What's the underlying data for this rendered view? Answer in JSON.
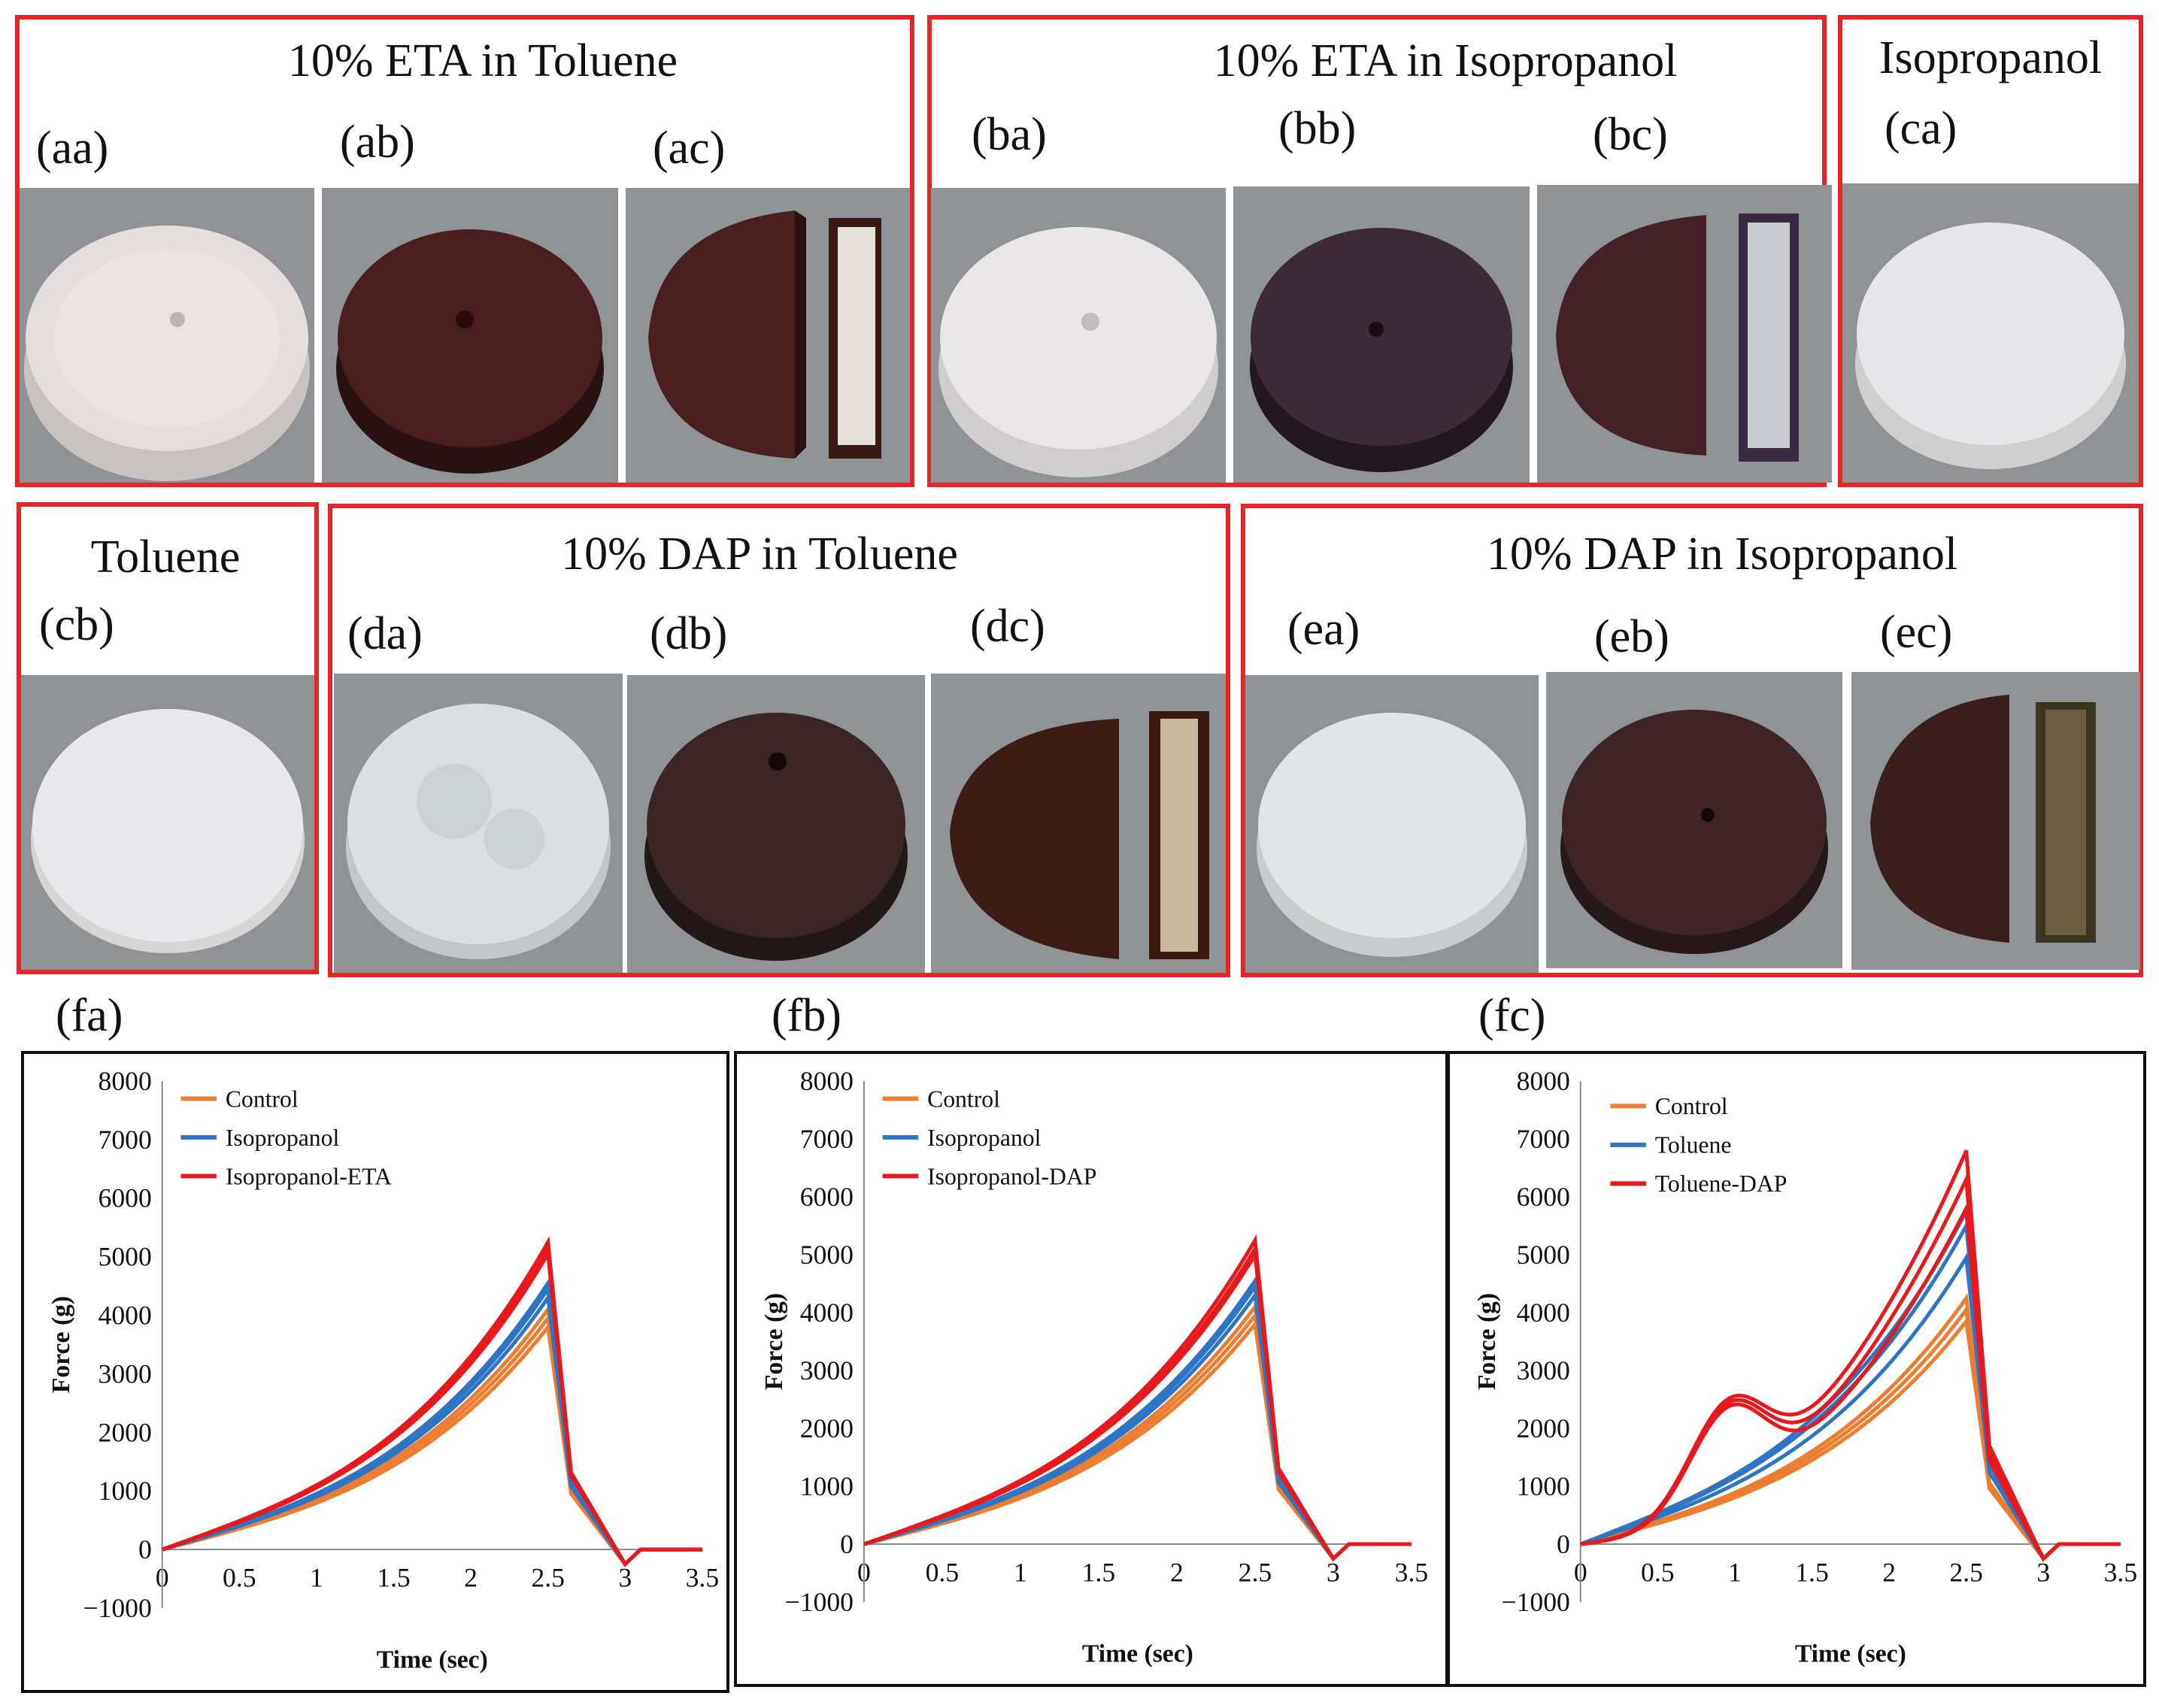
{
  "groups": {
    "eta_toluene": "10% ETA in Toluene",
    "eta_isopropanol": "10% ETA in Isopropanol",
    "isopropanol": "Isopropanol",
    "toluene": "Toluene",
    "dap_toluene": "10% DAP in Toluene",
    "dap_isopropanol": "10% DAP in Isopropanol"
  },
  "labels": {
    "aa": "(aa)",
    "ab": "(ab)",
    "ac": "(ac)",
    "ba": "(ba)",
    "bb": "(bb)",
    "bc": "(bc)",
    "ca": "(ca)",
    "cb": "(cb)",
    "da": "(da)",
    "db": "(db)",
    "dc": "(dc)",
    "ea": "(ea)",
    "eb": "(eb)",
    "ec": "(ec)",
    "fa": "(fa)",
    "fb": "(fb)",
    "fc": "(fc)"
  },
  "colors": {
    "control": "#ed7d31",
    "blue": "#2e75c4",
    "red": "#e8191c",
    "frame": "#e3262a"
  },
  "chart_data": [
    {
      "id": "fa",
      "type": "line",
      "xlabel": "Time (sec)",
      "ylabel": "Force (g)",
      "xlim": [
        0,
        3.5
      ],
      "ylim": [
        -1000,
        8000
      ],
      "xticks": [
        0,
        0.5,
        1,
        1.5,
        2,
        2.5,
        3,
        3.5
      ],
      "yticks": [
        -1000,
        0,
        1000,
        2000,
        3000,
        4000,
        5000,
        6000,
        7000,
        8000
      ],
      "legend": [
        "Control",
        "Isopropanol",
        "Isopropanol-ETA"
      ],
      "series": [
        {
          "name": "Control",
          "color": "#ed7d31",
          "peaks": [
            3800,
            3950,
            4100
          ]
        },
        {
          "name": "Isopropanol",
          "color": "#2e75c4",
          "peaks": [
            4300,
            4450,
            4550
          ]
        },
        {
          "name": "Isopropanol-ETA",
          "color": "#e8191c",
          "peaks": [
            5050,
            5150,
            5250
          ]
        }
      ]
    },
    {
      "id": "fb",
      "type": "line",
      "xlabel": "Time (sec)",
      "ylabel": "Force (g)",
      "xlim": [
        0,
        3.5
      ],
      "ylim": [
        -1000,
        8000
      ],
      "xticks": [
        0,
        0.5,
        1,
        1.5,
        2,
        2.5,
        3,
        3.5
      ],
      "yticks": [
        -1000,
        0,
        1000,
        2000,
        3000,
        4000,
        5000,
        6000,
        7000,
        8000
      ],
      "legend": [
        "Control",
        "Isopropanol",
        "Isopropanol-DAP"
      ],
      "series": [
        {
          "name": "Control",
          "color": "#ed7d31",
          "peaks": [
            3800,
            3950,
            4100
          ]
        },
        {
          "name": "Isopropanol",
          "color": "#2e75c4",
          "peaks": [
            4300,
            4450,
            4550
          ]
        },
        {
          "name": "Isopropanol-DAP",
          "color": "#e8191c",
          "peaks": [
            5000,
            5100,
            5250
          ]
        }
      ]
    },
    {
      "id": "fc",
      "type": "line",
      "xlabel": "Time (sec)",
      "ylabel": "Force (g)",
      "xlim": [
        0,
        3.5
      ],
      "ylim": [
        -1000,
        8000
      ],
      "xticks": [
        0,
        0.5,
        1,
        1.5,
        2,
        2.5,
        3,
        3.5
      ],
      "yticks": [
        -1000,
        0,
        1000,
        2000,
        3000,
        4000,
        5000,
        6000,
        7000,
        8000
      ],
      "legend": [
        "Control",
        "Toluene",
        "Toluene-DAP"
      ],
      "series": [
        {
          "name": "Control",
          "color": "#ed7d31",
          "peaks": [
            3850,
            4050,
            4250
          ]
        },
        {
          "name": "Toluene",
          "color": "#2e75c4",
          "peaks": [
            4950,
            5500,
            5750
          ]
        },
        {
          "name": "Toluene-DAP",
          "color": "#e8191c",
          "peaks": [
            5800,
            6300,
            6800
          ]
        }
      ]
    }
  ]
}
